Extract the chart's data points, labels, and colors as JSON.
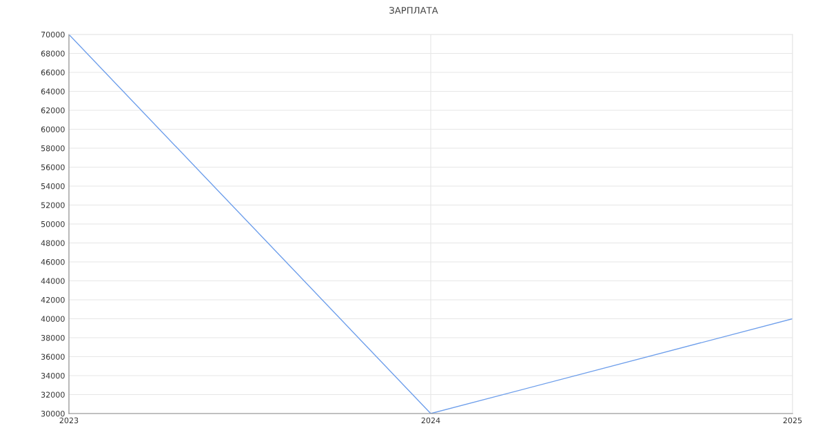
{
  "chart_data": {
    "type": "line",
    "title": "ЗАРПЛАТА",
    "x": [
      2023,
      2024,
      2025
    ],
    "series": [
      {
        "color": "#6d9eeb",
        "values": [
          70000,
          30000,
          40000
        ]
      }
    ],
    "xlim": [
      2023,
      2025
    ],
    "xticks": [
      2023,
      2024,
      2025
    ],
    "ylim": [
      30000,
      70000
    ],
    "yticks": [
      30000,
      32000,
      34000,
      36000,
      38000,
      40000,
      42000,
      44000,
      46000,
      48000,
      50000,
      52000,
      54000,
      56000,
      58000,
      60000,
      62000,
      64000,
      66000,
      68000,
      70000
    ],
    "grid": true,
    "marker": "none",
    "line_style": "solid"
  }
}
